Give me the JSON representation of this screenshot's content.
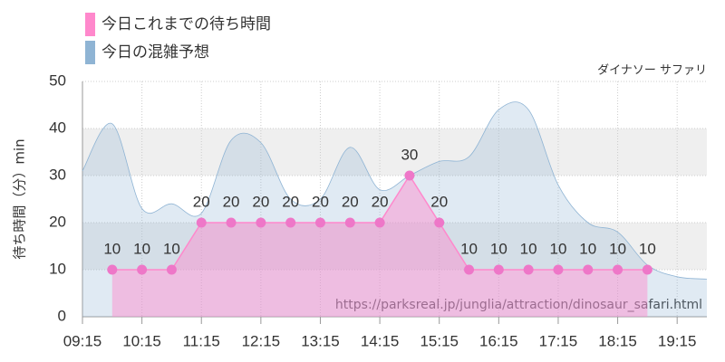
{
  "chart_data": {
    "type": "area",
    "legend_position": "top-left",
    "annotation": "ダイナソー サファリ",
    "watermark": "https://parksreal.jp/junglia/attraction/dinosaur_safari.html",
    "ylabel": "待ち時間（分）min",
    "xlim": [
      "09:15",
      "19:45"
    ],
    "xticks": [
      "09:15",
      "10:15",
      "11:15",
      "12:15",
      "13:15",
      "14:15",
      "15:15",
      "16:15",
      "17:15",
      "18:15",
      "19:15"
    ],
    "ylim": [
      0,
      50
    ],
    "yticks": [
      0,
      10,
      20,
      30,
      40,
      50
    ],
    "grid": true,
    "series": [
      {
        "name": "今日の混雑予想",
        "color": "#8fb4d4",
        "x": [
          "09:15",
          "09:45",
          "10:15",
          "10:45",
          "11:15",
          "11:45",
          "12:15",
          "12:45",
          "13:15",
          "13:45",
          "14:15",
          "14:45",
          "15:15",
          "15:45",
          "16:15",
          "16:45",
          "17:15",
          "17:45",
          "18:15",
          "18:45",
          "19:15",
          "19:45"
        ],
        "values": [
          31,
          41,
          23,
          24,
          22,
          37.5,
          37,
          25,
          25,
          36,
          27,
          30,
          33,
          34,
          44,
          44,
          28,
          20,
          18,
          11,
          8.5,
          8
        ]
      },
      {
        "name": "今日これまでの待ち時間",
        "color": "#ff88cc",
        "x": [
          "09:45",
          "10:15",
          "10:45",
          "11:15",
          "11:45",
          "12:15",
          "12:45",
          "13:15",
          "13:45",
          "14:15",
          "14:45",
          "15:15",
          "15:45",
          "16:15",
          "16:45",
          "17:15",
          "17:45",
          "18:15",
          "18:45"
        ],
        "values": [
          10,
          10,
          10,
          20,
          20,
          20,
          20,
          20,
          20,
          20,
          30,
          20,
          10,
          10,
          10,
          10,
          10,
          10,
          10
        ],
        "show_labels": true
      }
    ]
  }
}
